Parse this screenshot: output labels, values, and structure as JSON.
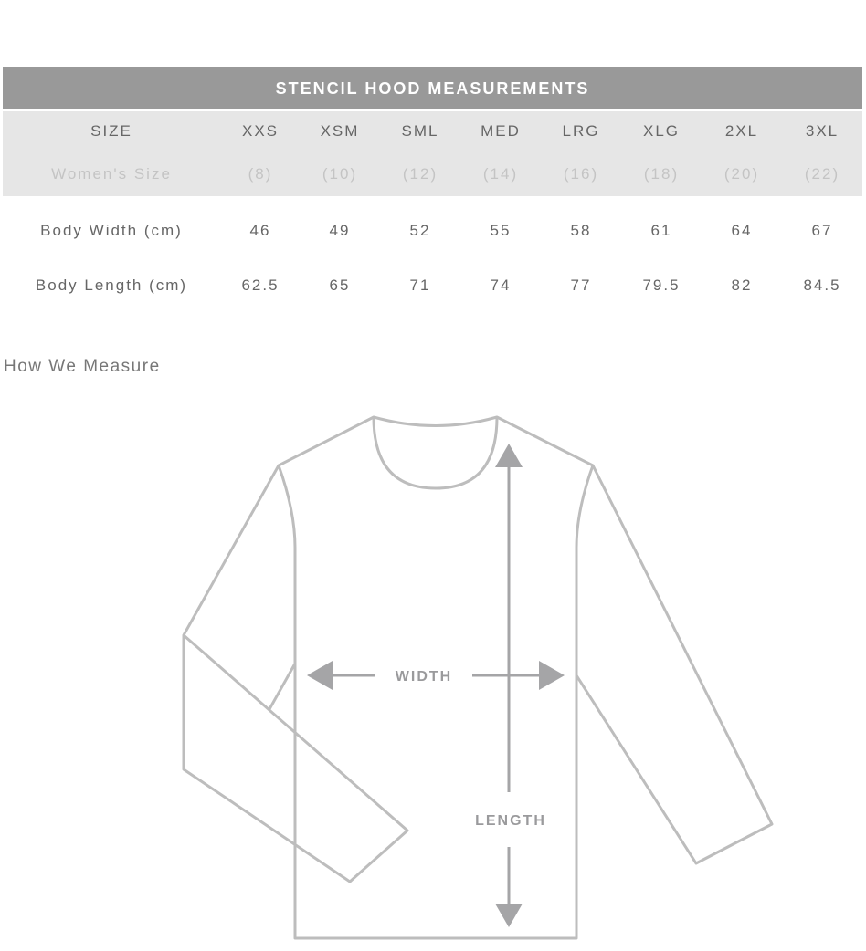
{
  "table": {
    "title": "STENCIL HOOD MEASUREMENTS",
    "header": [
      "SIZE",
      "XXS",
      "XSM",
      "SML",
      "MED",
      "LRG",
      "XLG",
      "2XL",
      "3XL"
    ],
    "womens": [
      "Women's Size",
      "(8)",
      "(10)",
      "(12)",
      "(14)",
      "(16)",
      "(18)",
      "(20)",
      "(22)"
    ],
    "rows": [
      [
        "Body Width (cm)",
        "46",
        "49",
        "52",
        "55",
        "58",
        "61",
        "64",
        "67"
      ],
      [
        "Body Length (cm)",
        "62.5",
        "65",
        "71",
        "74",
        "77",
        "79.5",
        "82",
        "84.5"
      ]
    ]
  },
  "diagram": {
    "heading": "How We Measure",
    "width_label": "WIDTH",
    "length_label": "LENGTH",
    "line_color": "#bdbdbd",
    "arrow_color": "#a5a5a7"
  }
}
